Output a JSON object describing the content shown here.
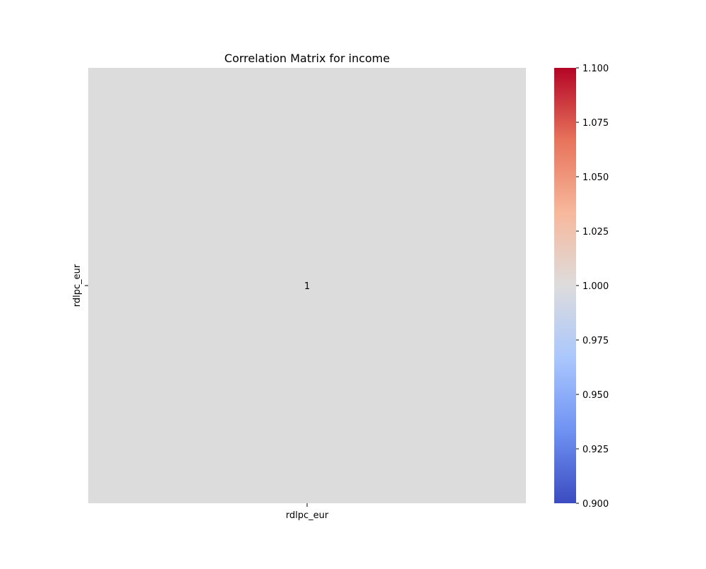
{
  "chart_data": {
    "type": "heatmap",
    "title": "Correlation Matrix for income",
    "x_labels": [
      "rdlpc_eur"
    ],
    "y_labels": [
      "rdlpc_eur"
    ],
    "values": [
      [
        1.0
      ]
    ],
    "annotations": [
      [
        "1"
      ]
    ],
    "colormap": "coolwarm",
    "colorbar": {
      "min": 0.9,
      "max": 1.1,
      "ticks": [
        0.9,
        0.925,
        0.95,
        0.975,
        1.0,
        1.025,
        1.05,
        1.075,
        1.1
      ],
      "tick_labels": [
        "0.900",
        "0.925",
        "0.950",
        "0.975",
        "1.000",
        "1.025",
        "1.050",
        "1.075",
        "1.100"
      ],
      "colors": [
        "#3b4cc0",
        "#6f92f3",
        "#aac7fd",
        "#dddcdc",
        "#f7b89c",
        "#e7745b",
        "#b40426"
      ]
    },
    "cell_color": "#dddcdc"
  }
}
